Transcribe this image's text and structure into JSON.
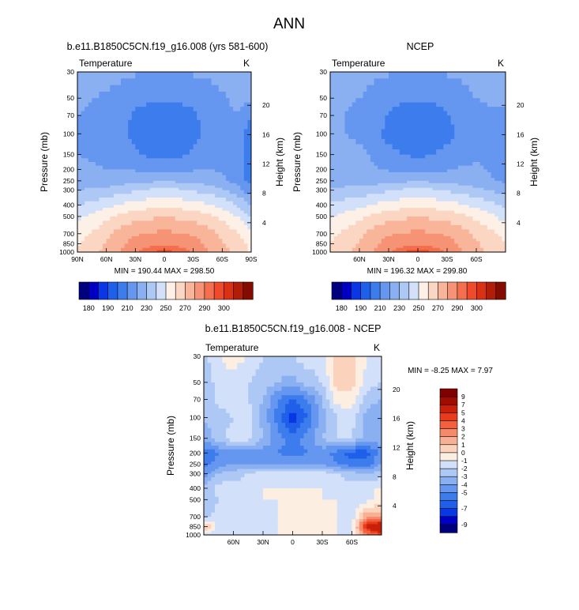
{
  "figure": {
    "title": "ANN"
  },
  "colors": {
    "abs_scale": [
      "#00007f",
      "#0000c4",
      "#0a37e6",
      "#1f5fe9",
      "#3c7ced",
      "#6596f0",
      "#8bb0f2",
      "#aec8f5",
      "#d2e1f9",
      "#fdf0e6",
      "#fbd6c2",
      "#f8b59a",
      "#f69374",
      "#f36f4e",
      "#ef4b2a",
      "#dc3013",
      "#b41c0a",
      "#820c00"
    ],
    "diff_scale": [
      "#00007f",
      "#0000c4",
      "#0a37e6",
      "#1f5fe9",
      "#3c7ced",
      "#6596f0",
      "#8bb0f2",
      "#aec8f5",
      "#d2e1f9",
      "#fdeee2",
      "#fbd3bd",
      "#f8b094",
      "#f5896a",
      "#f26040",
      "#ea3a1c",
      "#c82009",
      "#a00c00",
      "#820000"
    ]
  },
  "chart_data": [
    {
      "id": "model",
      "type": "heatmap",
      "subtype": "filled-contour",
      "title": "b.e11.B1850C5CN.f19_g16.008 (yrs 581-600)",
      "variable_label": "Temperature",
      "units_label": "K",
      "xlabel": "",
      "ylabel": "Pressure (mb)",
      "ylabel_right": "Height (km)",
      "x_ticks": [
        "90N",
        "60N",
        "30N",
        "0",
        "30S",
        "60S",
        "90S"
      ],
      "x_tick_values": [
        90,
        60,
        30,
        0,
        -30,
        -60,
        -90
      ],
      "xlim": [
        90,
        -90
      ],
      "y_ticks": [
        30,
        50,
        70,
        100,
        150,
        200,
        250,
        300,
        400,
        500,
        700,
        850,
        1000
      ],
      "y_scale": "log",
      "ylim": [
        30,
        1000
      ],
      "height_ticks": [
        20,
        16,
        12,
        8,
        4
      ],
      "stats": "MIN = 190.44   MAX = 298.50",
      "min": 190.44,
      "max": 298.5,
      "levels": [
        175,
        180,
        185,
        190,
        200,
        210,
        220,
        230,
        240,
        250,
        260,
        270,
        280,
        290,
        295,
        300,
        305
      ],
      "colorbar_labels": [
        "180",
        "190",
        "210",
        "230",
        "250",
        "270",
        "290",
        "300"
      ],
      "colorbar_label_indices": [
        1,
        3,
        5,
        7,
        9,
        11,
        13,
        15
      ],
      "lat": [
        90,
        75,
        60,
        45,
        30,
        15,
        0,
        -15,
        -30,
        -45,
        -60,
        -75,
        -90
      ],
      "lev": [
        30,
        50,
        70,
        100,
        150,
        200,
        250,
        300,
        400,
        500,
        700,
        850,
        1000
      ],
      "z": [
        [
          226,
          224,
          223,
          222,
          221,
          220,
          220,
          220,
          221,
          222,
          223,
          224,
          225
        ],
        [
          222,
          220,
          219,
          217,
          213,
          212,
          211,
          212,
          213,
          216,
          219,
          222,
          224
        ],
        [
          220,
          219,
          218,
          215,
          208,
          206,
          205,
          206,
          208,
          214,
          218,
          220,
          210
        ],
        [
          218,
          217,
          216,
          213,
          206,
          203,
          202,
          203,
          206,
          212,
          216,
          215,
          205
        ],
        [
          220,
          219,
          218,
          216,
          212,
          208,
          207,
          208,
          212,
          216,
          217,
          214,
          204
        ],
        [
          222,
          221,
          220,
          220,
          219,
          217,
          216,
          217,
          219,
          220,
          219,
          215,
          205
        ],
        [
          224,
          224,
          224,
          226,
          227,
          228,
          229,
          228,
          227,
          226,
          222,
          216,
          206
        ],
        [
          230,
          232,
          233,
          236,
          239,
          242,
          243,
          242,
          239,
          236,
          232,
          225,
          214
        ],
        [
          240,
          243,
          247,
          251,
          254,
          256,
          257,
          256,
          254,
          251,
          247,
          240,
          228
        ],
        [
          248,
          252,
          257,
          262,
          266,
          268,
          269,
          268,
          266,
          262,
          257,
          250,
          238
        ],
        [
          256,
          261,
          268,
          274,
          279,
          281,
          282,
          281,
          279,
          274,
          268,
          262,
          252
        ],
        [
          259,
          264,
          271,
          278,
          284,
          287,
          288,
          287,
          284,
          278,
          271,
          266,
          256
        ],
        [
          261,
          266,
          273,
          281,
          289,
          295,
          297,
          295,
          289,
          281,
          273,
          268,
          258
        ]
      ]
    },
    {
      "id": "ncep",
      "type": "heatmap",
      "subtype": "filled-contour",
      "title": "NCEP",
      "variable_label": "Temperature",
      "units_label": "K",
      "xlabel": "",
      "ylabel": "Pressure (mb)",
      "ylabel_right": "Height (km)",
      "x_ticks": [
        "60N",
        "30N",
        "0",
        "30S",
        "60S"
      ],
      "x_tick_values": [
        60,
        30,
        0,
        -30,
        -60
      ],
      "xlim": [
        90,
        -90
      ],
      "y_ticks": [
        30,
        50,
        70,
        100,
        150,
        200,
        250,
        300,
        400,
        500,
        700,
        850,
        1000
      ],
      "y_scale": "log",
      "ylim": [
        30,
        1000
      ],
      "height_ticks": [
        20,
        16,
        12,
        8,
        4
      ],
      "stats": "MIN = 196.32   MAX = 299.80",
      "min": 196.32,
      "max": 299.8,
      "levels": [
        175,
        180,
        185,
        190,
        200,
        210,
        220,
        230,
        240,
        250,
        260,
        270,
        280,
        290,
        295,
        300,
        305
      ],
      "colorbar_labels": [
        "180",
        "190",
        "210",
        "230",
        "250",
        "270",
        "290",
        "300"
      ],
      "colorbar_label_indices": [
        1,
        3,
        5,
        7,
        9,
        11,
        13,
        15
      ],
      "lat": [
        90,
        75,
        60,
        45,
        30,
        15,
        0,
        -15,
        -30,
        -45,
        -60,
        -75,
        -90
      ],
      "lev": [
        30,
        50,
        70,
        100,
        150,
        200,
        250,
        300,
        400,
        500,
        700,
        850,
        1000
      ],
      "z": [
        [
          226,
          224,
          223,
          222,
          221,
          220,
          220,
          220,
          221,
          222,
          223,
          224,
          225
        ],
        [
          222,
          221,
          220,
          217,
          213,
          212,
          211,
          212,
          213,
          217,
          220,
          221,
          222
        ],
        [
          221,
          220,
          218,
          215,
          209,
          206,
          204,
          206,
          209,
          214,
          218,
          219,
          218
        ],
        [
          221,
          220,
          217,
          213,
          207,
          202,
          200,
          202,
          207,
          212,
          216,
          217,
          216
        ],
        [
          228,
          226,
          224,
          218,
          213,
          210,
          208,
          210,
          213,
          217,
          219,
          218,
          216
        ],
        [
          226,
          225,
          223,
          221,
          219,
          217,
          216,
          217,
          219,
          221,
          221,
          219,
          217
        ],
        [
          225,
          225,
          225,
          226,
          227,
          228,
          229,
          228,
          227,
          226,
          224,
          221,
          218
        ],
        [
          232,
          233,
          234,
          236,
          239,
          242,
          243,
          242,
          239,
          236,
          233,
          229,
          225
        ],
        [
          241,
          244,
          247,
          251,
          254,
          256,
          257,
          256,
          254,
          251,
          247,
          243,
          238
        ],
        [
          249,
          253,
          257,
          262,
          266,
          268,
          269,
          268,
          266,
          262,
          257,
          252,
          246
        ],
        [
          257,
          262,
          268,
          274,
          279,
          281,
          282,
          281,
          279,
          274,
          268,
          263,
          257
        ],
        [
          260,
          265,
          271,
          278,
          284,
          287,
          288,
          287,
          284,
          278,
          271,
          266,
          260
        ],
        [
          262,
          267,
          273,
          281,
          289,
          295,
          298,
          295,
          289,
          281,
          273,
          268,
          262
        ]
      ]
    },
    {
      "id": "diff",
      "type": "heatmap",
      "subtype": "filled-contour",
      "title": "b.e11.B1850C5CN.f19_g16.008 - NCEP",
      "variable_label": "Temperature",
      "units_label": "K",
      "xlabel": "",
      "ylabel": "Pressure (mb)",
      "ylabel_right": "Height (km)",
      "x_ticks": [
        "60N",
        "30N",
        "0",
        "30S",
        "60S"
      ],
      "x_tick_values": [
        60,
        30,
        0,
        -30,
        -60
      ],
      "xlim": [
        90,
        -90
      ],
      "y_ticks": [
        30,
        50,
        70,
        100,
        150,
        200,
        250,
        300,
        400,
        500,
        700,
        850,
        1000
      ],
      "y_scale": "log",
      "ylim": [
        30,
        1000
      ],
      "height_ticks": [
        20,
        16,
        12,
        8,
        4
      ],
      "stats": "MIN =  -8.25   MAX =   7.97",
      "min": -8.25,
      "max": 7.97,
      "levels": [
        -10,
        -9,
        -8,
        -7,
        -6,
        -5,
        -4,
        -3,
        -2,
        -1,
        0,
        1,
        2,
        3,
        4,
        5,
        7,
        9,
        10
      ],
      "colorbar_labels": [
        "-9",
        "-7",
        "-5",
        "-4",
        "-3",
        "-2",
        "-1",
        "0",
        "1",
        "2",
        "3",
        "4",
        "5",
        "7",
        "9"
      ],
      "colorbar_label_values": [
        -9,
        -7,
        -5,
        -4,
        -3,
        -2,
        -1,
        0,
        1,
        2,
        3,
        4,
        5,
        7,
        9
      ],
      "lat": [
        90,
        75,
        60,
        45,
        30,
        15,
        0,
        -15,
        -30,
        -45,
        -60,
        -75,
        -90
      ],
      "lev": [
        30,
        50,
        70,
        100,
        150,
        200,
        250,
        300,
        400,
        500,
        700,
        850,
        1000
      ],
      "z": [
        [
          -2.5,
          -1.0,
          -0.5,
          -1.0,
          -2.0,
          -2.0,
          -2.0,
          -1.5,
          -1.5,
          0.5,
          0.5,
          -1.0,
          -2.0
        ],
        [
          -3.0,
          -1.5,
          -1.5,
          -2.0,
          -2.5,
          -3.0,
          -3.5,
          -2.5,
          -2.0,
          0.5,
          0.5,
          -1.5,
          -2.0
        ],
        [
          -3.0,
          -1.5,
          -1.5,
          -2.0,
          -3.0,
          -5.0,
          -6.0,
          -5.0,
          -3.0,
          -0.5,
          -0.5,
          -2.5,
          -3.0
        ],
        [
          -3.0,
          -2.5,
          -2.0,
          -1.5,
          -3.5,
          -5.5,
          -7.5,
          -6.0,
          -3.5,
          -2.0,
          -1.5,
          -3.5,
          -4.0
        ],
        [
          -3.5,
          -2.5,
          -1.5,
          -1.5,
          -3.0,
          -4.5,
          -5.5,
          -4.5,
          -3.0,
          -2.0,
          -2.0,
          -3.5,
          -3.5
        ],
        [
          -6.0,
          -5.0,
          -4.5,
          -4.5,
          -4.5,
          -5.0,
          -5.5,
          -5.0,
          -4.5,
          -5.5,
          -6.5,
          -6.5,
          -4.5
        ],
        [
          -5.5,
          -4.5,
          -4.0,
          -4.0,
          -4.0,
          -4.0,
          -4.0,
          -4.0,
          -4.0,
          -5.0,
          -5.5,
          -5.5,
          -4.0
        ],
        [
          -4.5,
          -3.0,
          -2.5,
          -2.0,
          -1.5,
          -1.5,
          -1.5,
          -1.5,
          -1.5,
          -2.0,
          -2.5,
          -3.0,
          -2.5
        ],
        [
          -3.0,
          -1.5,
          -1.5,
          -1.5,
          -1.0,
          -1.0,
          -1.0,
          -1.0,
          -1.0,
          -1.5,
          -1.5,
          -1.0,
          -1.0
        ],
        [
          -3.0,
          -2.0,
          -1.5,
          -1.0,
          -1.0,
          -1.0,
          -1.0,
          -1.0,
          -1.0,
          -1.0,
          -1.5,
          -1.5,
          -0.5
        ],
        [
          -2.5,
          -1.5,
          -1.5,
          -1.5,
          -1.5,
          -1.0,
          -1.0,
          -1.0,
          -1.0,
          -1.0,
          -1.5,
          2.0,
          1.5
        ],
        [
          1.5,
          -1.5,
          -1.5,
          -1.5,
          -1.5,
          -1.0,
          -1.0,
          -1.0,
          -1.0,
          -1.0,
          -1.5,
          5.5,
          7.5
        ],
        [
          -1.5,
          -1.5,
          -1.5,
          -1.5,
          -1.0,
          -1.0,
          -1.0,
          -1.0,
          -1.0,
          -1.0,
          -1.0,
          2.5,
          4.0
        ]
      ]
    }
  ]
}
